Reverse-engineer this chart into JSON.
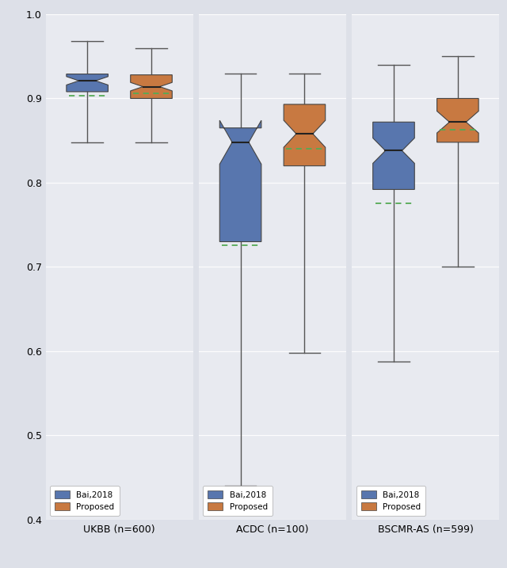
{
  "ylim": [
    0.4,
    1.0
  ],
  "yticks": [
    0.4,
    0.5,
    0.6,
    0.7,
    0.8,
    0.9,
    1.0
  ],
  "subplots": [
    {
      "xlabel": "UKBB (n=600)",
      "bai2018": {
        "whislo": 0.848,
        "q1": 0.908,
        "med": 0.921,
        "q3": 0.929,
        "whishi": 0.968,
        "mean": 0.903,
        "notchlo": 0.916,
        "notchhi": 0.926
      },
      "proposed": {
        "whislo": 0.848,
        "q1": 0.9,
        "med": 0.914,
        "q3": 0.928,
        "whishi": 0.96,
        "mean": 0.906,
        "notchlo": 0.909,
        "notchhi": 0.919
      }
    },
    {
      "xlabel": "ACDC (n=100)",
      "bai2018": {
        "whislo": 0.44,
        "q1": 0.73,
        "med": 0.848,
        "q3": 0.865,
        "whishi": 0.93,
        "mean": 0.726,
        "notchlo": 0.822,
        "notchhi": 0.874
      },
      "proposed": {
        "whislo": 0.598,
        "q1": 0.82,
        "med": 0.858,
        "q3": 0.893,
        "whishi": 0.93,
        "mean": 0.84,
        "notchlo": 0.842,
        "notchhi": 0.874
      }
    },
    {
      "xlabel": "BSCMR-AS (n=599)",
      "bai2018": {
        "whislo": 0.588,
        "q1": 0.792,
        "med": 0.838,
        "q3": 0.872,
        "whishi": 0.94,
        "mean": 0.776,
        "notchlo": 0.823,
        "notchhi": 0.853
      },
      "proposed": {
        "whislo": 0.7,
        "q1": 0.848,
        "med": 0.872,
        "q3": 0.9,
        "whishi": 0.95,
        "mean": 0.863,
        "notchlo": 0.859,
        "notchhi": 0.885
      }
    }
  ],
  "color_bai": "#5876ae",
  "color_proposed": "#c87941",
  "color_mean": "#55aa55",
  "bg_color": "#e8eaf0",
  "fig_bg": "#dde0e8"
}
